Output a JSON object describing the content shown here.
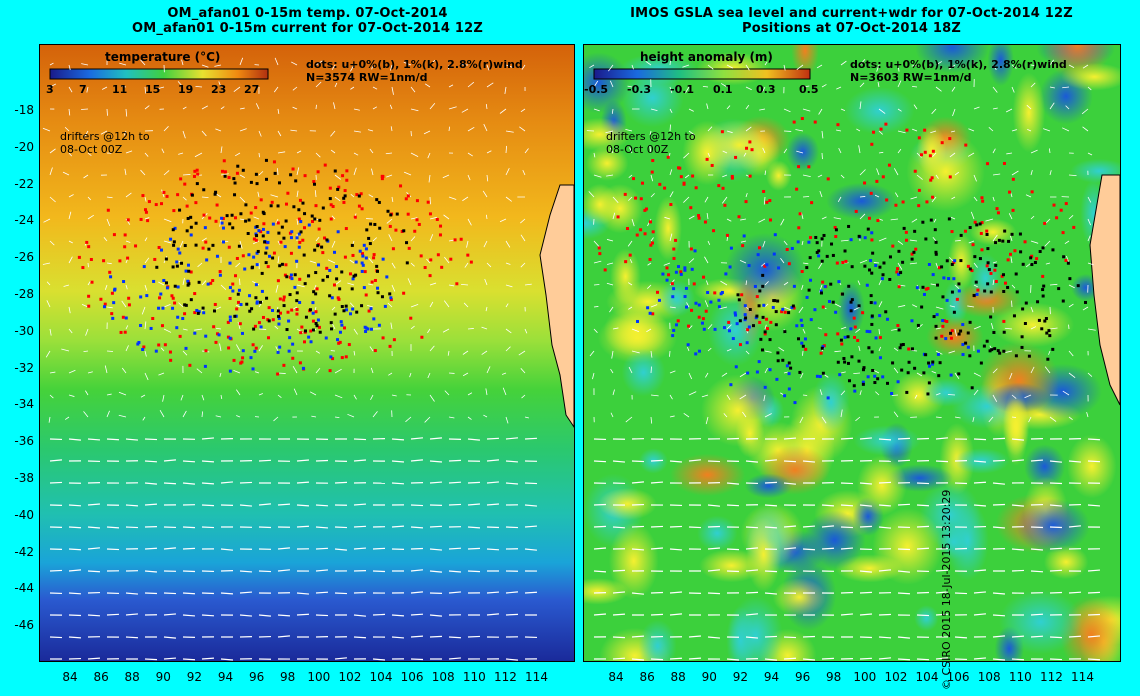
{
  "left": {
    "title_line1": "OM_afan01 0-15m temp. 07-Oct-2014",
    "title_line2": "OM_afan01 0-15m current for 07-Oct-2014 12Z",
    "colorbar_title": "temperature (°C)",
    "colorbar_ticks": [
      "3",
      "7",
      "11",
      "15",
      "19",
      "23",
      "27"
    ],
    "legend_line1": "dots: u+0%(b), 1%(k), 2.8%(r)wind",
    "legend_line2": "N=3574 RW=1nm/d",
    "note_line1": "drifters @12h to",
    "note_line2": "08-Oct 00Z"
  },
  "right": {
    "title_line1": "IMOS GSLA sea level and current+wdr for 07-Oct-2014 12Z",
    "title_line2": "Positions at 07-Oct-2014 18Z",
    "colorbar_title": "height anomaly (m)",
    "colorbar_ticks": [
      "-0.5",
      "-0.3",
      "-0.1",
      "0.1",
      "0.3",
      "0.5"
    ],
    "legend_line1": "dots: u+0%(b), 1%(k), 2.8%(r)wind",
    "legend_line2": "N=3603 RW=1nm/d",
    "note_line1": "drifters @12h to",
    "note_line2": "08-Oct 00Z"
  },
  "y_ticks": [
    "-18",
    "-20",
    "-22",
    "-24",
    "-26",
    "-28",
    "-30",
    "-32",
    "-34",
    "-36",
    "-38",
    "-40",
    "-42",
    "-44",
    "-46"
  ],
  "x_ticks": [
    "84",
    "86",
    "88",
    "90",
    "92",
    "94",
    "96",
    "98",
    "100",
    "102",
    "104",
    "106",
    "108",
    "110",
    "112",
    "114"
  ],
  "credit": "© CSIRO 2015   18-Jul-2015 13:20:29",
  "colors": {
    "background": "#00ffff",
    "drifter_blue": "#0033ff",
    "drifter_black": "#000000",
    "drifter_red": "#ff0000",
    "land": "#ffcc99"
  }
}
